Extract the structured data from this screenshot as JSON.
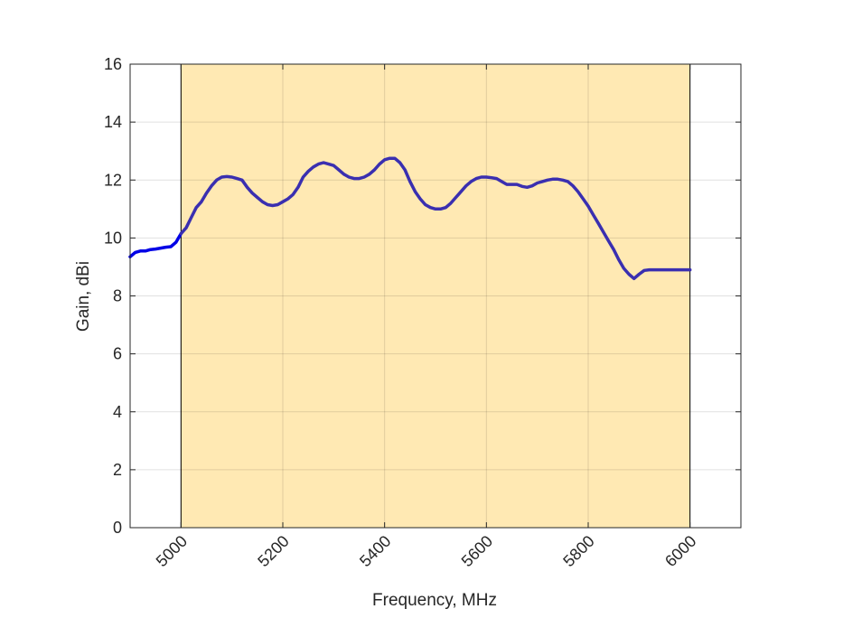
{
  "chart_data": {
    "type": "line",
    "title": "",
    "xlabel": "Frequency, MHz",
    "ylabel": "Gain, dBi",
    "xlim": [
      4900,
      6100
    ],
    "ylim": [
      0,
      16
    ],
    "x_ticks": [
      5000,
      5200,
      5400,
      5600,
      5800,
      6000
    ],
    "y_ticks": [
      0,
      2,
      4,
      6,
      8,
      10,
      12,
      14,
      16
    ],
    "grid": true,
    "legend": "none",
    "highlight_band": {
      "x_start": 5000,
      "x_end": 6000,
      "color": "#ffe9b3"
    },
    "series": [
      {
        "color_outside_band": "#0000e6",
        "color_inside_band": "#3a2fb0",
        "x": [
          4900,
          4910,
          4920,
          4930,
          4940,
          4950,
          4960,
          4970,
          4980,
          4990,
          5000,
          5010,
          5020,
          5030,
          5040,
          5050,
          5060,
          5070,
          5080,
          5090,
          5100,
          5110,
          5120,
          5130,
          5140,
          5150,
          5160,
          5170,
          5180,
          5190,
          5200,
          5210,
          5220,
          5230,
          5240,
          5250,
          5260,
          5270,
          5280,
          5290,
          5300,
          5310,
          5320,
          5330,
          5340,
          5350,
          5360,
          5370,
          5380,
          5390,
          5400,
          5410,
          5420,
          5430,
          5440,
          5450,
          5460,
          5470,
          5480,
          5490,
          5500,
          5510,
          5520,
          5530,
          5540,
          5550,
          5560,
          5570,
          5580,
          5590,
          5600,
          5610,
          5620,
          5630,
          5640,
          5650,
          5660,
          5670,
          5680,
          5690,
          5700,
          5710,
          5720,
          5730,
          5740,
          5750,
          5760,
          5770,
          5780,
          5790,
          5800,
          5810,
          5820,
          5830,
          5840,
          5850,
          5860,
          5870,
          5880,
          5890,
          5900,
          5910,
          5920,
          5930,
          5940,
          5950,
          5960,
          5970,
          5980,
          5990,
          6000
        ],
        "y": [
          9.35,
          9.5,
          9.55,
          9.55,
          9.6,
          9.62,
          9.65,
          9.68,
          9.7,
          9.85,
          10.15,
          10.35,
          10.7,
          11.05,
          11.25,
          11.55,
          11.8,
          12.0,
          12.1,
          12.12,
          12.1,
          12.05,
          12.0,
          11.75,
          11.55,
          11.4,
          11.25,
          11.15,
          11.12,
          11.15,
          11.25,
          11.35,
          11.5,
          11.75,
          12.1,
          12.3,
          12.45,
          12.55,
          12.6,
          12.55,
          12.5,
          12.35,
          12.2,
          12.1,
          12.05,
          12.05,
          12.1,
          12.2,
          12.35,
          12.55,
          12.7,
          12.75,
          12.75,
          12.6,
          12.35,
          11.95,
          11.6,
          11.35,
          11.15,
          11.05,
          11.0,
          11.0,
          11.05,
          11.2,
          11.4,
          11.6,
          11.8,
          11.95,
          12.05,
          12.1,
          12.1,
          12.08,
          12.05,
          11.95,
          11.85,
          11.85,
          11.85,
          11.78,
          11.75,
          11.8,
          11.9,
          11.95,
          12.0,
          12.03,
          12.03,
          12.0,
          11.95,
          11.8,
          11.6,
          11.35,
          11.1,
          10.8,
          10.5,
          10.2,
          9.9,
          9.6,
          9.25,
          8.95,
          8.75,
          8.6,
          8.75,
          8.88,
          8.9,
          8.9,
          8.9,
          8.9,
          8.9,
          8.9,
          8.9,
          8.9,
          8.9
        ]
      }
    ]
  }
}
